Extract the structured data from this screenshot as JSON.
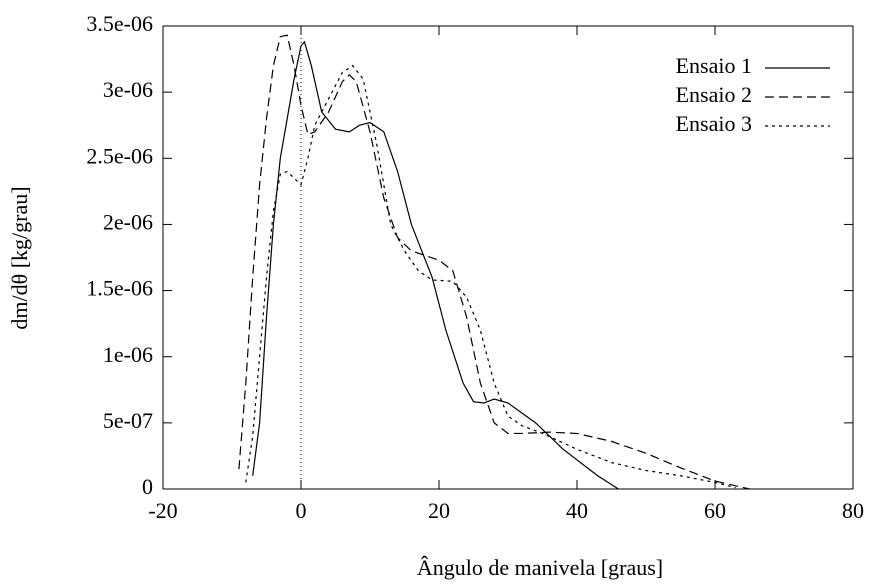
{
  "chart_data": {
    "type": "line",
    "xlabel": "Ângulo de manivela  [graus]",
    "ylabel": "dm/dθ [kg/grau]",
    "xlim": [
      -20,
      80
    ],
    "xticks": [
      -20,
      0,
      20,
      40,
      60,
      80
    ],
    "ylim": [
      0,
      3.5e-06
    ],
    "yticks": [
      0,
      {
        "value": 5e-07,
        "label": "5e-07"
      },
      {
        "value": 1e-06,
        "label": "1e-06"
      },
      {
        "value": 1.5e-06,
        "label": "1.5e-06"
      },
      {
        "value": 2e-06,
        "label": "2e-06"
      },
      {
        "value": 2.5e-06,
        "label": "2.5e-06"
      },
      {
        "value": 3e-06,
        "label": "3e-06"
      },
      {
        "value": 3.5e-06,
        "label": "3.5e-06"
      }
    ],
    "zero_axis": true,
    "legend": "top-right",
    "series": [
      {
        "name": "Ensaio 1",
        "color": "#000000",
        "dash": "solid",
        "x": [
          -7,
          -6,
          -5,
          -4,
          -3,
          -2,
          -1,
          0,
          0.5,
          1.5,
          3,
          5,
          7,
          8.5,
          10,
          12,
          14,
          16,
          19,
          21,
          23.5,
          25,
          26.5,
          28,
          30,
          34,
          38,
          43,
          46
        ],
        "values": [
          1e-07,
          5e-07,
          1.3e-06,
          2e-06,
          2.5e-06,
          2.8e-06,
          3.1e-06,
          3.35e-06,
          3.38e-06,
          3.2e-06,
          2.85e-06,
          2.72e-06,
          2.7e-06,
          2.75e-06,
          2.77e-06,
          2.7e-06,
          2.4e-06,
          2e-06,
          1.6e-06,
          1.2e-06,
          8e-07,
          6.6e-07,
          6.5e-07,
          6.8e-07,
          6.5e-07,
          5e-07,
          3e-07,
          1e-07,
          0
        ]
      },
      {
        "name": "Ensaio 2",
        "color": "#000000",
        "dash": "dashed",
        "x": [
          -9,
          -8,
          -7,
          -6,
          -5,
          -4,
          -3,
          -2,
          -1,
          0,
          1,
          2,
          4,
          6,
          7,
          8,
          10,
          12,
          14,
          16,
          20,
          22,
          24,
          26,
          28,
          30,
          32,
          36,
          40,
          45,
          50,
          55,
          60,
          65
        ],
        "values": [
          1.5e-07,
          8e-07,
          1.6e-06,
          2.3e-06,
          2.8e-06,
          3.2e-06,
          3.42e-06,
          3.43e-06,
          3.2e-06,
          2.9e-06,
          2.68e-06,
          2.7e-06,
          2.85e-06,
          3.08e-06,
          3.13e-06,
          3.08e-06,
          2.7e-06,
          2.2e-06,
          1.9e-06,
          1.8e-06,
          1.73e-06,
          1.65e-06,
          1.3e-06,
          8e-07,
          5e-07,
          4.2e-07,
          4.2e-07,
          4.3e-07,
          4.2e-07,
          3.6e-07,
          2.7e-07,
          1.6e-07,
          6e-08,
          0
        ]
      },
      {
        "name": "Ensaio 3",
        "color": "#000000",
        "dash": "dotted",
        "x": [
          -8,
          -7,
          -6,
          -5,
          -4,
          -3,
          -2,
          -1,
          0,
          1,
          2,
          4,
          6,
          7.5,
          9,
          11,
          13,
          15,
          17,
          19,
          22,
          24,
          26,
          28,
          30,
          32,
          35,
          40,
          45,
          50,
          55,
          60,
          63
        ],
        "values": [
          5e-08,
          4e-07,
          1e-06,
          1.6e-06,
          2.1e-06,
          2.38e-06,
          2.4e-06,
          2.35e-06,
          2.3e-06,
          2.5e-06,
          2.75e-06,
          2.95e-06,
          3.15e-06,
          3.2e-06,
          3.1e-06,
          2.6e-06,
          2e-06,
          1.8e-06,
          1.65e-06,
          1.58e-06,
          1.57e-06,
          1.45e-06,
          1.2e-06,
          8e-07,
          5.5e-07,
          4.8e-07,
          4.2e-07,
          3e-07,
          2e-07,
          1.4e-07,
          1e-07,
          5e-08,
          1e-08
        ]
      }
    ]
  }
}
